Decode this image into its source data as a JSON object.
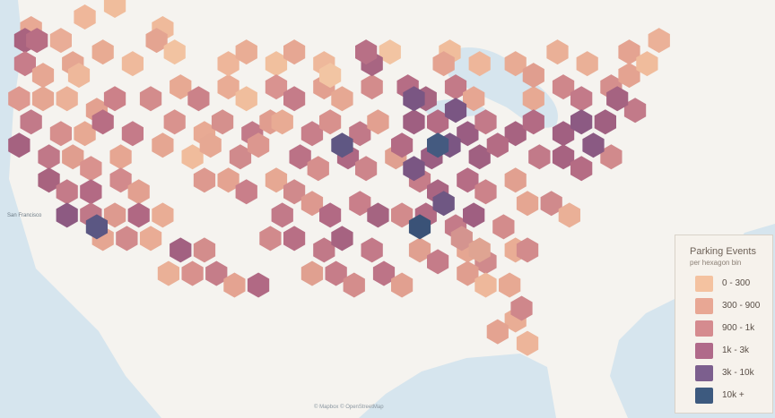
{
  "map": {
    "bins": [
      [
        2,
        2,
        "#e8a994"
      ],
      [
        4,
        3,
        "#e9ad97"
      ],
      [
        6,
        1,
        "#efb79a"
      ],
      [
        9,
        0,
        "#f0bd9c"
      ],
      [
        13,
        2,
        "#efba9b"
      ],
      [
        1,
        3,
        "#a9637f"
      ],
      [
        2,
        3,
        "#b86e84"
      ],
      [
        5,
        5,
        "#e5a692"
      ],
      [
        8,
        4,
        "#e8ab93"
      ],
      [
        12,
        3,
        "#e4a491"
      ],
      [
        1,
        5,
        "#c77d8a"
      ],
      [
        3,
        6,
        "#e6a793"
      ],
      [
        6,
        6,
        "#eeb89b"
      ],
      [
        10,
        5,
        "#efba9c"
      ],
      [
        14,
        4,
        "#f2c3a1"
      ],
      [
        1,
        8,
        "#de9990"
      ],
      [
        3,
        8,
        "#e5a692"
      ],
      [
        5,
        8,
        "#ebb198"
      ],
      [
        7,
        9,
        "#e3a190"
      ],
      [
        9,
        8,
        "#cc8189"
      ],
      [
        2,
        10,
        "#c27a89"
      ],
      [
        4,
        11,
        "#d68f8d"
      ],
      [
        6,
        11,
        "#e7a993"
      ],
      [
        8,
        10,
        "#b86e84"
      ],
      [
        10,
        11,
        "#c57b89"
      ],
      [
        1,
        12,
        "#a56280"
      ],
      [
        3,
        13,
        "#c07888"
      ],
      [
        5,
        13,
        "#e09e8f"
      ],
      [
        7,
        14,
        "#d9928e"
      ],
      [
        9,
        13,
        "#e6a692"
      ],
      [
        3,
        15,
        "#a8637f"
      ],
      [
        5,
        16,
        "#c47b89"
      ],
      [
        7,
        16,
        "#b36a84"
      ],
      [
        9,
        15,
        "#d28a8c"
      ],
      [
        11,
        16,
        "#e2a090"
      ],
      [
        5,
        18,
        "#8d5a82"
      ],
      [
        7,
        18,
        "#c07888"
      ],
      [
        9,
        18,
        "#dd9a8f"
      ],
      [
        11,
        18,
        "#b06883"
      ],
      [
        13,
        18,
        "#e9ad95"
      ],
      [
        8,
        20,
        "#e5a692"
      ],
      [
        10,
        20,
        "#d18a8c"
      ],
      [
        12,
        20,
        "#e9ac95"
      ],
      [
        14,
        21,
        "#a26181"
      ],
      [
        16,
        21,
        "#d38d8c"
      ],
      [
        13,
        23,
        "#eab097"
      ],
      [
        15,
        23,
        "#d8918d"
      ],
      [
        17,
        23,
        "#c57d89"
      ],
      [
        19,
        24,
        "#e4a391"
      ],
      [
        21,
        24,
        "#b16984"
      ],
      [
        12,
        8,
        "#d38c8c"
      ],
      [
        14,
        7,
        "#e7a993"
      ],
      [
        16,
        8,
        "#cb8289"
      ],
      [
        18,
        7,
        "#e9ac95"
      ],
      [
        20,
        8,
        "#f0be9d"
      ],
      [
        14,
        10,
        "#d9938e"
      ],
      [
        16,
        11,
        "#e8aa94"
      ],
      [
        18,
        10,
        "#d5908d"
      ],
      [
        20,
        11,
        "#c27a89"
      ],
      [
        22,
        10,
        "#e09d8f"
      ],
      [
        13,
        12,
        "#e5a692"
      ],
      [
        15,
        13,
        "#f0bc9c"
      ],
      [
        17,
        12,
        "#e6a893"
      ],
      [
        19,
        13,
        "#d08a8c"
      ],
      [
        21,
        12,
        "#dc978f"
      ],
      [
        16,
        15,
        "#dd998f"
      ],
      [
        18,
        15,
        "#e4a391"
      ],
      [
        20,
        16,
        "#c97f8a"
      ],
      [
        22,
        15,
        "#e6a893"
      ],
      [
        24,
        16,
        "#d08a8c"
      ],
      [
        18,
        5,
        "#eeb69a"
      ],
      [
        20,
        4,
        "#e9ad95"
      ],
      [
        22,
        5,
        "#f1c09e"
      ],
      [
        24,
        4,
        "#e6a793"
      ],
      [
        26,
        5,
        "#eeb89b"
      ],
      [
        22,
        7,
        "#d99390"
      ],
      [
        24,
        8,
        "#c57c89"
      ],
      [
        26,
        7,
        "#e2a090"
      ],
      [
        28,
        8,
        "#e6a893"
      ],
      [
        30,
        7,
        "#d38c8c"
      ],
      [
        23,
        10,
        "#e8ab94"
      ],
      [
        25,
        11,
        "#c87f8a"
      ],
      [
        27,
        10,
        "#d8918d"
      ],
      [
        29,
        11,
        "#c17988"
      ],
      [
        31,
        10,
        "#e2a090"
      ],
      [
        24,
        13,
        "#bb7286"
      ],
      [
        26,
        14,
        "#d68f8d"
      ],
      [
        28,
        13,
        "#ae6883"
      ],
      [
        30,
        14,
        "#cd858b"
      ],
      [
        32,
        13,
        "#e0a090"
      ],
      [
        23,
        18,
        "#c27a89"
      ],
      [
        25,
        17,
        "#dd998f"
      ],
      [
        27,
        18,
        "#b26a84"
      ],
      [
        29,
        17,
        "#c97f8a"
      ],
      [
        31,
        18,
        "#a56481"
      ],
      [
        22,
        20,
        "#d18a8c"
      ],
      [
        24,
        20,
        "#b86f85"
      ],
      [
        26,
        21,
        "#c17988"
      ],
      [
        28,
        20,
        "#a66381"
      ],
      [
        30,
        21,
        "#c37a89"
      ],
      [
        25,
        23,
        "#e0a090"
      ],
      [
        27,
        23,
        "#c67d89"
      ],
      [
        29,
        24,
        "#d48d8c"
      ],
      [
        31,
        23,
        "#bd7487"
      ],
      [
        33,
        24,
        "#e1a090"
      ],
      [
        32,
        4,
        "#f2c4a2"
      ],
      [
        33,
        7,
        "#b66d85"
      ],
      [
        35,
        8,
        "#a76581"
      ],
      [
        37,
        7,
        "#c37a88"
      ],
      [
        39,
        8,
        "#e6a692"
      ],
      [
        34,
        10,
        "#9f5f81"
      ],
      [
        36,
        10,
        "#b56c84"
      ],
      [
        38,
        11,
        "#9a5d82"
      ],
      [
        40,
        10,
        "#c37a89"
      ],
      [
        42,
        11,
        "#a76381"
      ],
      [
        33,
        12,
        "#b36b84"
      ],
      [
        35,
        13,
        "#9b5e82"
      ],
      [
        37,
        12,
        "#7b5683"
      ],
      [
        39,
        13,
        "#a06081"
      ],
      [
        41,
        12,
        "#b46c84"
      ],
      [
        34,
        15,
        "#c67d89"
      ],
      [
        36,
        16,
        "#a96582"
      ],
      [
        38,
        15,
        "#b66d85"
      ],
      [
        40,
        16,
        "#cc838a"
      ],
      [
        42,
        15,
        "#e1a090"
      ],
      [
        33,
        18,
        "#d28b8c"
      ],
      [
        35,
        18,
        "#b36b84"
      ],
      [
        37,
        19,
        "#c47b89"
      ],
      [
        39,
        18,
        "#9f5f81"
      ],
      [
        41,
        19,
        "#d38c8c"
      ],
      [
        34,
        21,
        "#e0a090"
      ],
      [
        36,
        22,
        "#c57c89"
      ],
      [
        38,
        21,
        "#e5a692"
      ],
      [
        40,
        22,
        "#d08a8c"
      ],
      [
        42,
        21,
        "#e9ad95"
      ],
      [
        44,
        8,
        "#e7a993"
      ],
      [
        46,
        7,
        "#cf878b"
      ],
      [
        48,
        8,
        "#c37a89"
      ],
      [
        50,
        7,
        "#d58f8d"
      ],
      [
        52,
        6,
        "#e4a391"
      ],
      [
        44,
        10,
        "#b36b84"
      ],
      [
        46,
        11,
        "#a16081"
      ],
      [
        48,
        10,
        "#8c5a83"
      ],
      [
        50,
        10,
        "#a06081"
      ],
      [
        52,
        9,
        "#c27a89"
      ],
      [
        44,
        13,
        "#c27a89"
      ],
      [
        46,
        13,
        "#a76381"
      ],
      [
        48,
        14,
        "#b56c84"
      ],
      [
        50,
        13,
        "#d18a8c"
      ],
      [
        43,
        17,
        "#e5a692"
      ],
      [
        45,
        17,
        "#d08a8c"
      ],
      [
        47,
        18,
        "#eab097"
      ],
      [
        38,
        23,
        "#e09e8f"
      ],
      [
        40,
        24,
        "#eeb89b"
      ],
      [
        42,
        24,
        "#e7a993"
      ],
      [
        43,
        21,
        "#d28b8c"
      ],
      [
        42,
        27,
        "#e9ad95"
      ],
      [
        43,
        29,
        "#edb59a"
      ],
      [
        41,
        28,
        "#e4a391"
      ],
      [
        43,
        26,
        "#cf878b"
      ],
      [
        37,
        4,
        "#f0bd9c"
      ],
      [
        39,
        5,
        "#eeb69a"
      ],
      [
        42,
        5,
        "#e8ab94"
      ],
      [
        44,
        6,
        "#e09e8f"
      ],
      [
        48,
        5,
        "#eab097"
      ],
      [
        30,
        5,
        "#a86582"
      ],
      [
        30,
        4,
        "#b87086"
      ],
      [
        27,
        6,
        "#f2c5a3"
      ],
      [
        36,
        5,
        "#e4a391"
      ],
      [
        46,
        4,
        "#eab097"
      ],
      [
        52,
        4,
        "#e4a391"
      ],
      [
        53,
        5,
        "#f0bc9c"
      ],
      [
        54,
        3,
        "#ebb198"
      ],
      [
        51,
        8,
        "#a56381"
      ],
      [
        49,
        12,
        "#8a5a83"
      ],
      [
        37,
        9,
        "#7a5683"
      ],
      [
        34,
        8,
        "#7a5683"
      ],
      [
        36,
        12,
        "#445a80"
      ],
      [
        34,
        19,
        "#3a5277"
      ],
      [
        28,
        12,
        "#5f5783"
      ],
      [
        7,
        19,
        "#5b5783"
      ],
      [
        34,
        14,
        "#7a5683"
      ],
      [
        36,
        17,
        "#6f5783"
      ],
      [
        38,
        20,
        "#d4948f"
      ],
      [
        39,
        21,
        "#dfa492"
      ]
    ],
    "caption": "San Francisco",
    "attribution": "© Mapbox © OpenStreetMap"
  },
  "legend": {
    "title": "Parking Events",
    "subtitle": "per hexagon bin",
    "items": [
      {
        "label": "0 - 300",
        "color": "#f4c2a0"
      },
      {
        "label": "300 - 900",
        "color": "#e8a794"
      },
      {
        "label": "900 - 1k",
        "color": "#d58b8f"
      },
      {
        "label": "1k - 3k",
        "color": "#b06a8a"
      },
      {
        "label": "3k - 10k",
        "color": "#7c5f8e"
      },
      {
        "label": "10k +",
        "color": "#3d5a7f"
      }
    ]
  }
}
